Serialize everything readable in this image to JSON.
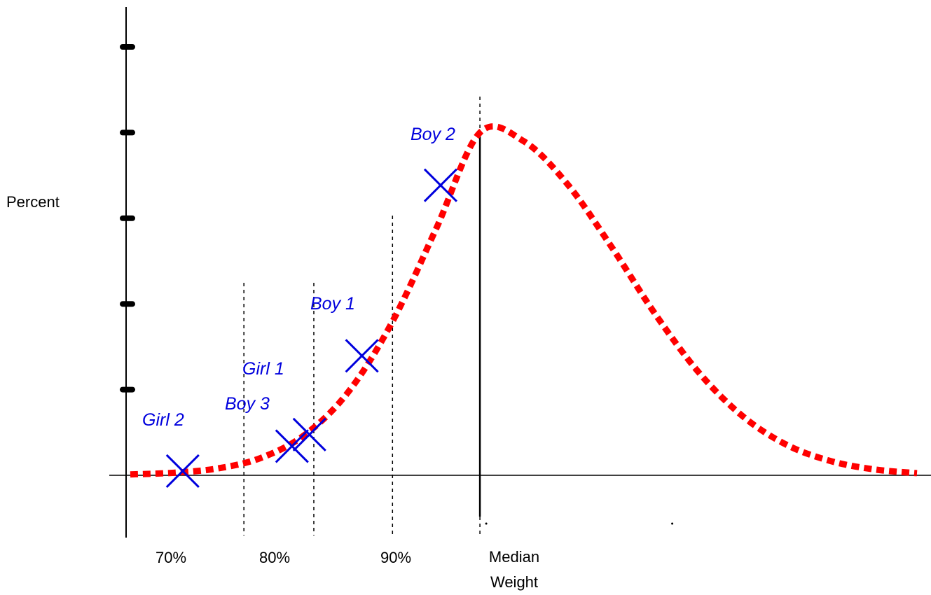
{
  "chart_data": {
    "type": "line",
    "title": "",
    "ylabel": "Percent",
    "xlabel": "",
    "x_ticks": [
      {
        "value": 70,
        "label": "70%"
      },
      {
        "value": 80,
        "label": "80%"
      },
      {
        "value": 90,
        "label": "90%"
      }
    ],
    "median_label": [
      "Median",
      "Weight"
    ],
    "median_x": 100,
    "curve": {
      "style": "dotted",
      "color": "#ff0000",
      "shape": "bell",
      "points": [
        {
          "x": 60,
          "y": 0.2
        },
        {
          "x": 65,
          "y": 0.6
        },
        {
          "x": 70,
          "y": 1.6
        },
        {
          "x": 75,
          "y": 4.1
        },
        {
          "x": 80,
          "y": 9.5
        },
        {
          "x": 85,
          "y": 19.6
        },
        {
          "x": 90,
          "y": 35.9
        },
        {
          "x": 95,
          "y": 57.6
        },
        {
          "x": 100,
          "y": 80.0
        },
        {
          "x": 105,
          "y": 78.0
        },
        {
          "x": 110,
          "y": 68.0
        },
        {
          "x": 115,
          "y": 53.5
        },
        {
          "x": 120,
          "y": 37.8
        },
        {
          "x": 125,
          "y": 24.1
        },
        {
          "x": 130,
          "y": 13.9
        },
        {
          "x": 135,
          "y": 7.2
        },
        {
          "x": 140,
          "y": 3.4
        },
        {
          "x": 145,
          "y": 1.4
        },
        {
          "x": 150,
          "y": 0.5
        }
      ]
    },
    "points": [
      {
        "label": "Girl 2",
        "x": 66.0,
        "y": 1.0
      },
      {
        "label": "Boy 3",
        "x": 78.5,
        "y": 6.8
      },
      {
        "label": "Girl 1",
        "x": 80.5,
        "y": 9.5
      },
      {
        "label": "Boy 1",
        "x": 86.5,
        "y": 27.9
      },
      {
        "label": "Boy 2",
        "x": 95.5,
        "y": 67.7
      }
    ],
    "point_color": "#0000dd",
    "reference_lines_dashed": [
      73,
      81,
      90,
      100
    ],
    "xlim": [
      58,
      150
    ],
    "ylim": [
      0,
      100
    ],
    "y_ticks": [
      20,
      40,
      60,
      80,
      100
    ],
    "grid": false,
    "legend": "none"
  }
}
